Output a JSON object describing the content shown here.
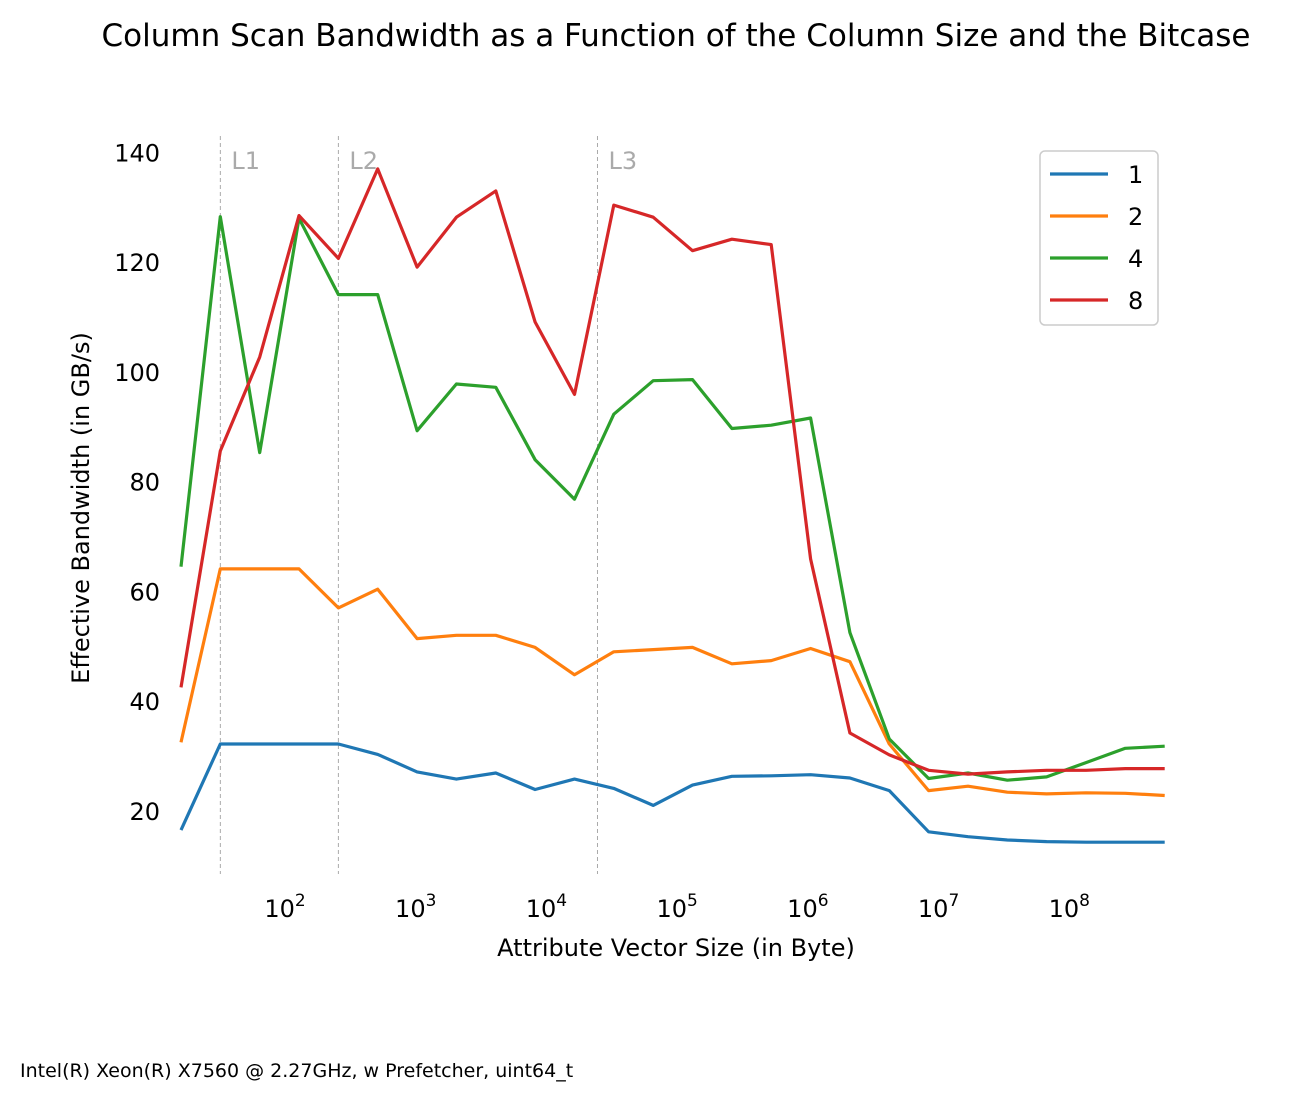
{
  "chart_data": {
    "type": "line",
    "title": "Column Scan Bandwidth as a Function of the Column Size and the Bitcase",
    "xlabel": "Attribute Vector Size (in Byte)",
    "ylabel": "Effective Bandwidth (in GB/s)",
    "xscale": "log",
    "xlim": [
      16,
      600000000
    ],
    "ylim": [
      8.5,
      143
    ],
    "grid": false,
    "legend_position": "top-right",
    "footnote": "Intel(R) Xeon(R) X7560 @ 2.27GHz, w Prefetcher, uint64_t",
    "x_ticks": [
      {
        "value": 100,
        "label": "10",
        "exp": "2"
      },
      {
        "value": 1000,
        "label": "10",
        "exp": "3"
      },
      {
        "value": 10000,
        "label": "10",
        "exp": "4"
      },
      {
        "value": 100000,
        "label": "10",
        "exp": "5"
      },
      {
        "value": 1000000,
        "label": "10",
        "exp": "6"
      },
      {
        "value": 10000000,
        "label": "10",
        "exp": "7"
      },
      {
        "value": 100000000,
        "label": "10",
        "exp": "8"
      }
    ],
    "y_ticks": [
      20,
      40,
      60,
      80,
      100,
      120,
      140
    ],
    "cache_lines": [
      {
        "label": "L1",
        "x": 32
      },
      {
        "label": "L2",
        "x": 256
      },
      {
        "label": "L3",
        "x": 24576
      }
    ],
    "x": [
      16,
      32,
      64,
      128,
      256,
      512,
      1024,
      2048,
      4096,
      8192,
      16384,
      32768,
      65536,
      131072,
      262144,
      524288,
      1048576,
      2097152,
      4194304,
      8388608,
      16777216,
      33554432,
      67108864,
      134217728,
      268435456,
      536870912
    ],
    "series": [
      {
        "name": "1",
        "color": "#1f77b4",
        "values": [
          16.5,
          32.2,
          32.2,
          32.2,
          32.2,
          30.3,
          27.1,
          25.8,
          26.9,
          23.9,
          25.8,
          24.1,
          21.0,
          24.7,
          26.3,
          26.4,
          26.6,
          26.0,
          23.7,
          16.2,
          15.3,
          14.7,
          14.4,
          14.3,
          14.3,
          14.3
        ]
      },
      {
        "name": "2",
        "color": "#ff7f0e",
        "values": [
          32.5,
          64.1,
          64.1,
          64.1,
          57.0,
          60.4,
          51.4,
          52.0,
          52.0,
          49.8,
          44.8,
          49.0,
          49.4,
          49.8,
          46.8,
          47.4,
          49.6,
          47.2,
          32.2,
          23.7,
          24.5,
          23.4,
          23.1,
          23.3,
          23.2,
          22.8
        ]
      },
      {
        "name": "4",
        "color": "#2ca02c",
        "values": [
          64.5,
          128.3,
          85.3,
          128.0,
          114.1,
          114.1,
          89.3,
          97.8,
          97.2,
          84.0,
          76.8,
          92.3,
          98.4,
          98.6,
          89.7,
          90.3,
          91.6,
          52.5,
          33.1,
          25.9,
          26.9,
          25.6,
          26.2,
          28.8,
          31.4,
          31.8
        ]
      },
      {
        "name": "8",
        "color": "#d62728",
        "values": [
          42.5,
          85.6,
          102.7,
          128.5,
          120.7,
          137.0,
          119.1,
          128.2,
          133.0,
          109.1,
          95.9,
          130.4,
          128.2,
          122.1,
          124.2,
          123.2,
          65.9,
          34.2,
          30.2,
          27.4,
          26.7,
          27.1,
          27.4,
          27.4,
          27.7,
          27.7
        ]
      }
    ]
  }
}
